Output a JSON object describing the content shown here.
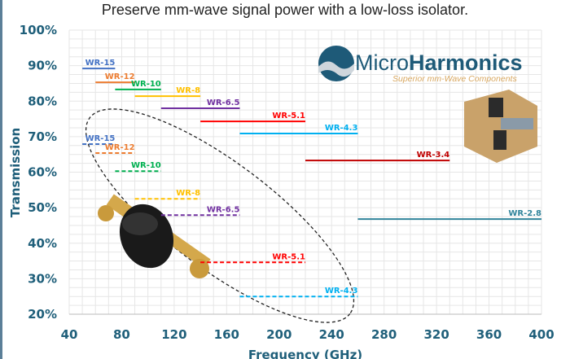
{
  "chart_data": {
    "type": "line",
    "title": "Preserve mm-wave signal power with a low-loss isolator.",
    "xlabel": "Frequency (GHz)",
    "ylabel": "Transmission",
    "xlim": [
      40,
      400
    ],
    "ylim": [
      20,
      100
    ],
    "xticks": [
      40,
      80,
      120,
      160,
      200,
      240,
      280,
      320,
      360,
      400
    ],
    "yticks": [
      "20%",
      "30%",
      "40%",
      "50%",
      "60%",
      "70%",
      "80%",
      "90%",
      "100%"
    ],
    "grid": true,
    "series": [
      {
        "name": "WR-15",
        "style": "solid",
        "color": "#4472c4",
        "x": [
          50,
          75
        ],
        "y": 89.2
      },
      {
        "name": "WR-12",
        "style": "solid",
        "color": "#ed7d31",
        "x": [
          60,
          90
        ],
        "y": 85.3
      },
      {
        "name": "WR-10",
        "style": "solid",
        "color": "#00b050",
        "x": [
          75,
          110
        ],
        "y": 83.3
      },
      {
        "name": "WR-8",
        "style": "solid",
        "color": "#ffc000",
        "x": [
          90,
          140
        ],
        "y": 81.4
      },
      {
        "name": "WR-6.5",
        "style": "solid",
        "color": "#7030a0",
        "x": [
          110,
          170
        ],
        "y": 78.0
      },
      {
        "name": "WR-5.1",
        "style": "solid",
        "color": "#ff0000",
        "x": [
          140,
          220
        ],
        "y": 74.3
      },
      {
        "name": "WR-4.3",
        "style": "solid",
        "color": "#00b0f0",
        "x": [
          170,
          260
        ],
        "y": 70.9
      },
      {
        "name": "WR-3.4",
        "style": "solid",
        "color": "#c00000",
        "x": [
          220,
          330
        ],
        "y": 63.3
      },
      {
        "name": "WR-2.8",
        "style": "solid",
        "color": "#31849b",
        "x": [
          260,
          400
        ],
        "y": 46.8
      },
      {
        "name": "WR-15",
        "style": "dashed",
        "color": "#4472c4",
        "x": [
          50,
          75
        ],
        "y": 67.9
      },
      {
        "name": "WR-12",
        "style": "dashed",
        "color": "#ed7d31",
        "x": [
          60,
          90
        ],
        "y": 65.4
      },
      {
        "name": "WR-10",
        "style": "dashed",
        "color": "#00b050",
        "x": [
          75,
          110
        ],
        "y": 60.3
      },
      {
        "name": "WR-8",
        "style": "dashed",
        "color": "#ffc000",
        "x": [
          90,
          140
        ],
        "y": 52.5
      },
      {
        "name": "WR-6.5",
        "style": "dashed",
        "color": "#7030a0",
        "x": [
          110,
          170
        ],
        "y": 47.9
      },
      {
        "name": "WR-5.1",
        "style": "dashed",
        "color": "#ff0000",
        "x": [
          140,
          220
        ],
        "y": 34.6
      },
      {
        "name": "WR-4.3",
        "style": "dashed",
        "color": "#00b0f0",
        "x": [
          170,
          260
        ],
        "y": 25.0
      }
    ]
  },
  "logo": {
    "name_light": "Micro",
    "name_bold": "Harmonics",
    "tagline": "Superior mm-Wave Components"
  }
}
